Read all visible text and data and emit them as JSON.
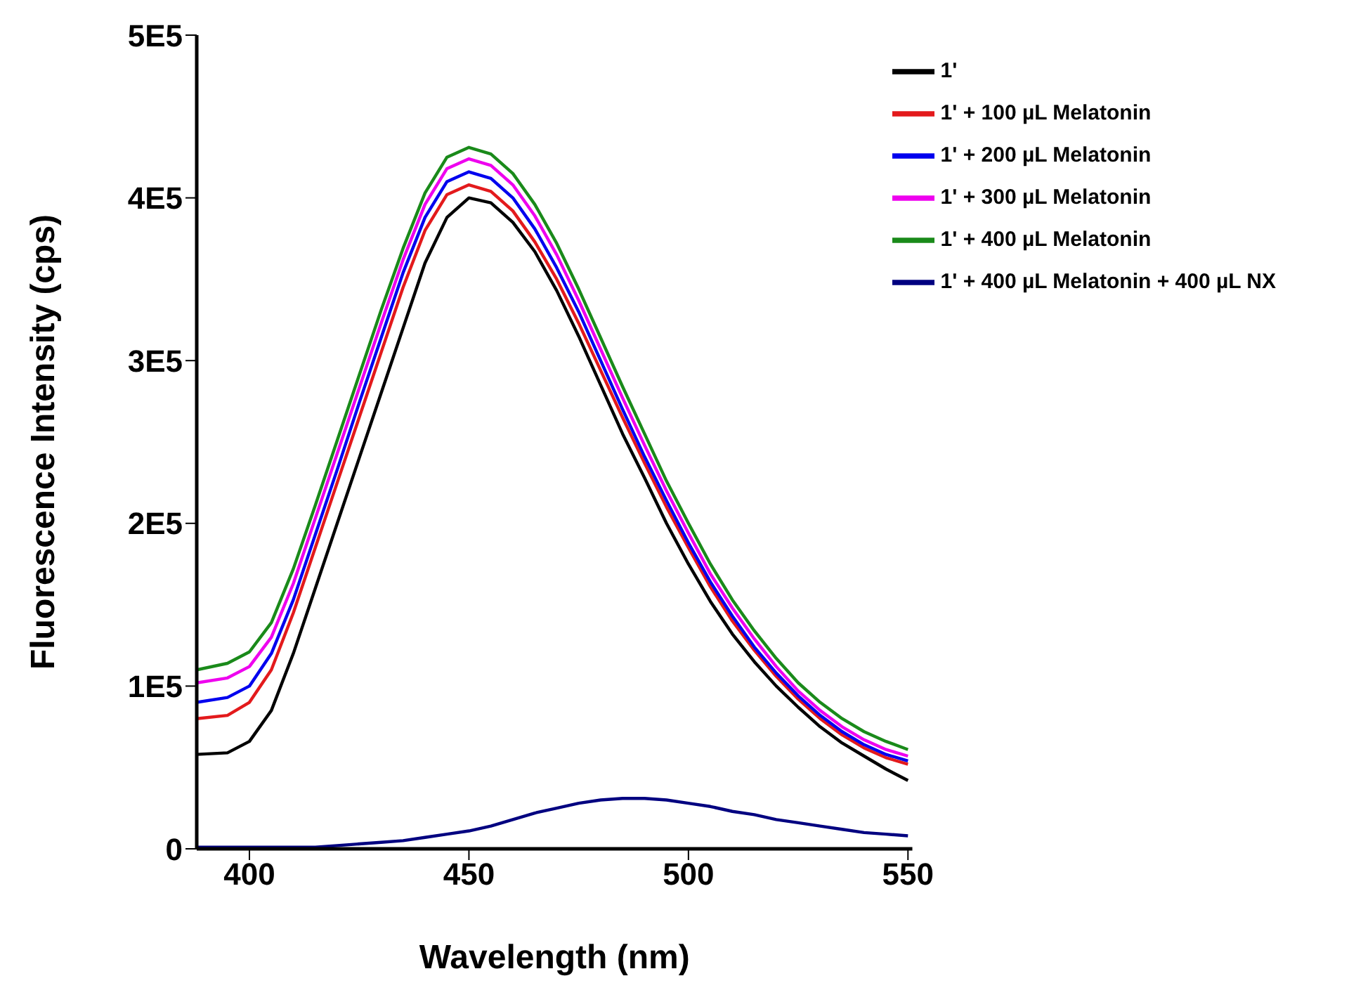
{
  "chart_data": {
    "type": "line",
    "xlabel": "Wavelength (nm)",
    "ylabel": "Fluorescence Intensity (cps)",
    "x": [
      388,
      395,
      400,
      405,
      410,
      415,
      420,
      425,
      430,
      435,
      440,
      445,
      450,
      455,
      460,
      465,
      470,
      475,
      480,
      485,
      490,
      495,
      500,
      505,
      510,
      515,
      520,
      525,
      530,
      535,
      540,
      545,
      550
    ],
    "series": [
      {
        "name": "1'",
        "color": "#000000",
        "values": [
          58000,
          59000,
          66000,
          85000,
          120000,
          160000,
          200000,
          240000,
          280000,
          320000,
          360000,
          388000,
          400000,
          397000,
          385000,
          367000,
          343000,
          315000,
          285000,
          255000,
          228000,
          200000,
          175000,
          152000,
          132000,
          115000,
          100000,
          87000,
          75000,
          65000,
          57000,
          49000,
          42000
        ]
      },
      {
        "name": "1' + 100 µL Melatonin",
        "color": "#e31a1c",
        "values": [
          80000,
          82000,
          90000,
          110000,
          145000,
          185000,
          225000,
          265000,
          305000,
          345000,
          380000,
          402000,
          408000,
          404000,
          392000,
          373000,
          350000,
          323000,
          294000,
          265000,
          237000,
          210000,
          185000,
          161000,
          140000,
          122000,
          106000,
          92000,
          80000,
          70000,
          62000,
          56000,
          52000
        ]
      },
      {
        "name": "1' + 200 µL Melatonin",
        "color": "#0000ee",
        "values": [
          90000,
          93000,
          100000,
          120000,
          153000,
          193000,
          233000,
          274000,
          314000,
          354000,
          388000,
          410000,
          416000,
          412000,
          400000,
          381000,
          357000,
          330000,
          300000,
          270000,
          241000,
          214000,
          188000,
          164000,
          143000,
          124000,
          108000,
          94000,
          82000,
          72000,
          64000,
          58000,
          54000
        ]
      },
      {
        "name": "1' + 300 µL Melatonin",
        "color": "#ee00ee",
        "values": [
          102000,
          105000,
          112000,
          130000,
          163000,
          203000,
          243000,
          283000,
          323000,
          362000,
          396000,
          418000,
          424000,
          420000,
          408000,
          389000,
          365000,
          337000,
          307000,
          277000,
          248000,
          220000,
          194000,
          169000,
          148000,
          129000,
          112000,
          97000,
          85000,
          75000,
          67000,
          61000,
          57000
        ]
      },
      {
        "name": "1' + 400 µL Melatonin",
        "color": "#1a8a1a",
        "values": [
          110000,
          114000,
          121000,
          139000,
          172000,
          211000,
          251000,
          291000,
          331000,
          369000,
          403000,
          425000,
          431000,
          427000,
          415000,
          396000,
          372000,
          344000,
          314000,
          284000,
          255000,
          226000,
          200000,
          175000,
          153000,
          134000,
          117000,
          102000,
          90000,
          80000,
          72000,
          66000,
          61000
        ]
      },
      {
        "name": "1' + 400 µL Melatonin + 400 µL NX",
        "color": "#000080",
        "values": [
          1000,
          1000,
          1000,
          1000,
          1000,
          1000,
          2000,
          3000,
          4000,
          5000,
          7000,
          9000,
          11000,
          14000,
          18000,
          22000,
          25000,
          28000,
          30000,
          31000,
          31000,
          30000,
          28000,
          26000,
          23000,
          21000,
          18000,
          16000,
          14000,
          12000,
          10000,
          9000,
          8000
        ]
      }
    ],
    "xlim": [
      388,
      551
    ],
    "xticks": [
      400,
      450,
      500,
      550
    ],
    "ylim": [
      0,
      500000
    ],
    "yticks": [
      0,
      {
        "value": 100000,
        "label": "1E5"
      },
      {
        "value": 200000,
        "label": "2E5"
      },
      {
        "value": 300000,
        "label": "3E5"
      },
      {
        "value": 400000,
        "label": "4E5"
      },
      {
        "value": 500000,
        "label": "5E5"
      }
    ],
    "legend": "top right",
    "marker": "none",
    "line_style": "solid"
  }
}
